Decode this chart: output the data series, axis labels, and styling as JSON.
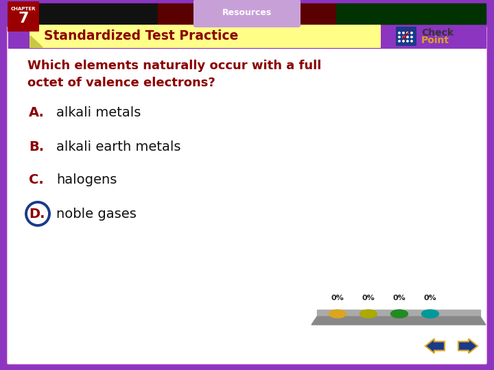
{
  "title": "Standardized Test Practice",
  "resources_label": "Resources",
  "chapter_line1": "CHAPTER",
  "chapter_line2": "7",
  "question": "Which elements naturally occur with a full\noctet of valence electrons?",
  "options": [
    {
      "letter": "A.",
      "text": "alkali metals",
      "circled": false
    },
    {
      "letter": "B.",
      "text": "alkali earth metals",
      "circled": false
    },
    {
      "letter": "C.",
      "text": "halogens",
      "circled": false
    },
    {
      "letter": "D.",
      "text": "noble gases",
      "circled": true
    }
  ],
  "bg_outer": "#8B35C0",
  "bg_inner": "#FFFFFF",
  "title_bg": "#FFFF88",
  "title_color": "#8B0000",
  "question_color": "#8B0000",
  "option_letter_color": "#8B0000",
  "option_text_color": "#111111",
  "circle_color": "#1a3a8a",
  "chapter_bg": "#9B0000",
  "chapter_text": "#FFFFFF",
  "top_bar_left_color": "#111111",
  "top_bar_mid_color": "#6B0000",
  "top_bar_right_color": "#003300",
  "resources_tab_bg": "#C8A0D8",
  "resources_text_color": "#FFFFFF",
  "poll_colors": [
    "#DAA520",
    "#AAAA00",
    "#228B22",
    "#009999"
  ],
  "poll_percentages": [
    "0%",
    "0%",
    "0%",
    "0%"
  ],
  "nav_arrow_fill": "#1a3a8a",
  "nav_arrow_border": "#DAA520",
  "checkpoint_check_color": "#8B0000",
  "checkpoint_text1_color": "#222222",
  "checkpoint_text2_color": "#DAA520"
}
